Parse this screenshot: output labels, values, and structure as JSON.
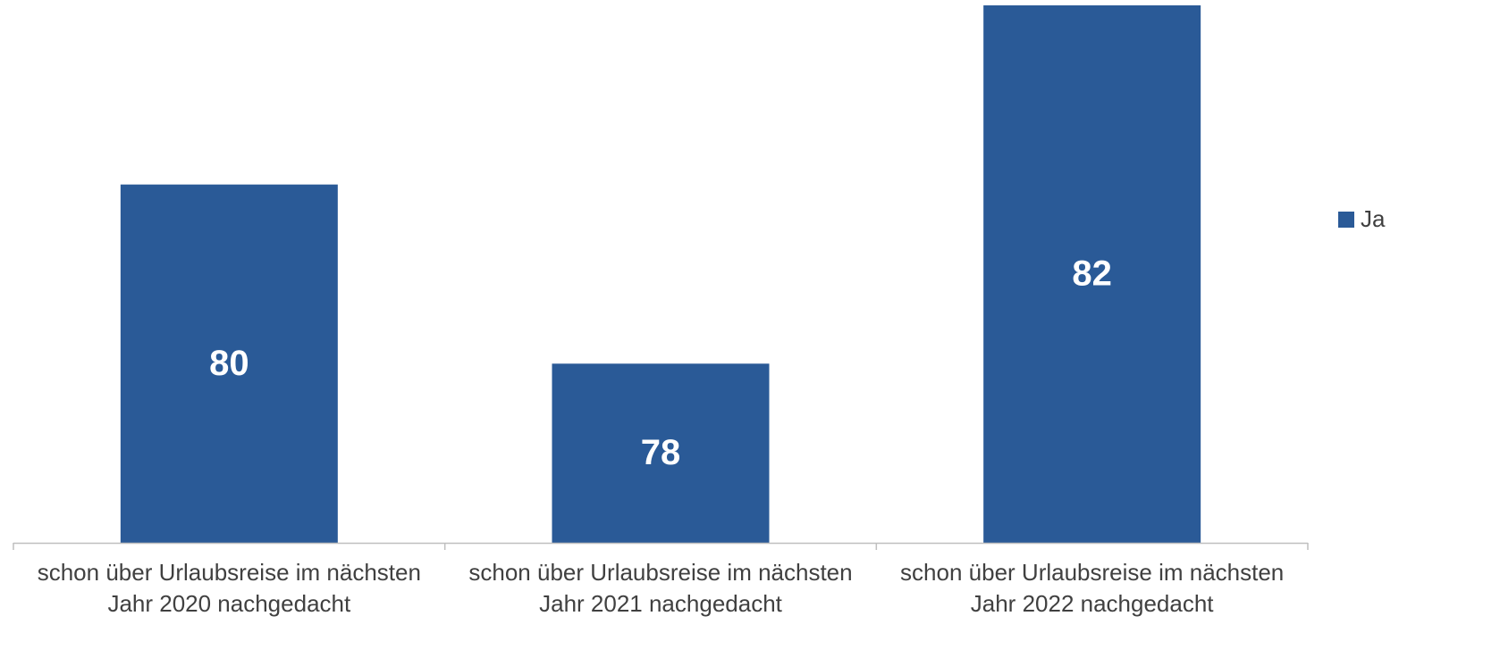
{
  "chart_data": {
    "type": "bar",
    "categories": [
      "schon über Urlaubsreise im nächsten Jahr 2020 nachgedacht",
      "schon über Urlaubsreise im nächsten Jahr 2021 nachgedacht",
      "schon über Urlaubsreise im nächsten Jahr 2022 nachgedacht"
    ],
    "series": [
      {
        "name": "Ja",
        "color": "#2a5a97",
        "values": [
          80,
          78,
          82
        ]
      }
    ],
    "ylim": [
      76,
      82
    ],
    "legend": "right"
  }
}
